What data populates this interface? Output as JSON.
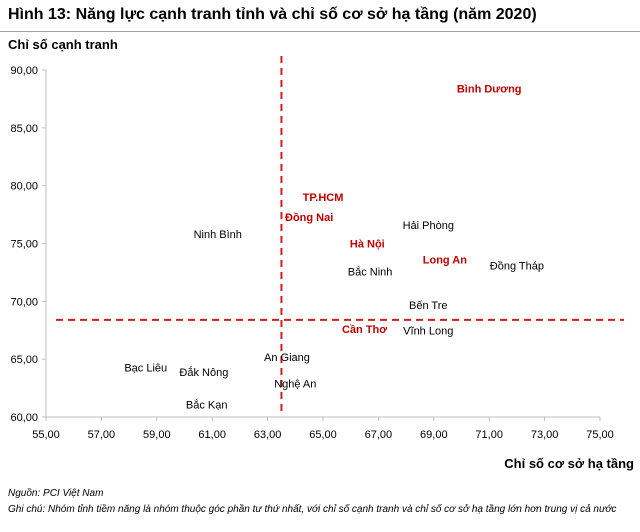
{
  "title": "Hình 13: Năng lực cạnh tranh tỉnh và chỉ số cơ sở hạ tầng (năm 2020)",
  "source": "Nguồn: PCI Việt Nam",
  "note": "Ghi chú: Nhóm tỉnh tiềm năng là nhóm thuộc góc phần tư thứ nhất, với chỉ số cạnh tranh và chỉ số cơ sở hạ tầng lớn hơn trung vị cả nước",
  "colors": {
    "highlight": "#c00000",
    "normal": "#000000",
    "median_line": "#d81b1b",
    "axis": "#bfbfbf"
  },
  "chart_data": {
    "type": "scatter",
    "xlabel": "Chỉ số cơ sở hạ tầng",
    "ylabel": "Chỉ số cạnh tranh",
    "xlim": [
      55,
      75
    ],
    "ylim": [
      60,
      90
    ],
    "xticks": [
      "55,00",
      "57,00",
      "59,00",
      "61,00",
      "63,00",
      "65,00",
      "67,00",
      "69,00",
      "71,00",
      "73,00",
      "75,00"
    ],
    "yticks": [
      "60,00",
      "65,00",
      "70,00",
      "75,00",
      "80,00",
      "85,00",
      "90,00"
    ],
    "grid": false,
    "median_lines": {
      "x": 63.5,
      "y": 68.4
    },
    "points": [
      {
        "label": "Bình Dương",
        "x": 71.0,
        "y": 88.4,
        "highlight": true
      },
      {
        "label": "TP.HCM",
        "x": 65.0,
        "y": 79.0,
        "highlight": true
      },
      {
        "label": "Đồng Nai",
        "x": 64.5,
        "y": 77.3,
        "highlight": true
      },
      {
        "label": "Hà Nội",
        "x": 66.6,
        "y": 75.0,
        "highlight": true
      },
      {
        "label": "Long An",
        "x": 69.4,
        "y": 73.6,
        "highlight": true
      },
      {
        "label": "Cần Thơ",
        "x": 66.5,
        "y": 67.6,
        "highlight": true
      },
      {
        "label": "Ninh Bình",
        "x": 61.2,
        "y": 75.8,
        "highlight": false
      },
      {
        "label": "Hải Phòng",
        "x": 68.8,
        "y": 76.6,
        "highlight": false
      },
      {
        "label": "Bắc Ninh",
        "x": 66.7,
        "y": 72.6,
        "highlight": false
      },
      {
        "label": "Đồng Tháp",
        "x": 72.0,
        "y": 73.1,
        "highlight": false
      },
      {
        "label": "Bến Tre",
        "x": 68.8,
        "y": 69.7,
        "highlight": false
      },
      {
        "label": "Vĩnh Long",
        "x": 68.8,
        "y": 67.5,
        "highlight": false
      },
      {
        "label": "An Giang",
        "x": 63.7,
        "y": 65.2,
        "highlight": false
      },
      {
        "label": "Bạc Liêu",
        "x": 58.6,
        "y": 64.3,
        "highlight": false
      },
      {
        "label": "Đắk Nông",
        "x": 60.7,
        "y": 63.9,
        "highlight": false
      },
      {
        "label": "Nghệ An",
        "x": 64.0,
        "y": 62.9,
        "highlight": false
      },
      {
        "label": "Bắc Kạn",
        "x": 60.8,
        "y": 61.1,
        "highlight": false
      }
    ]
  }
}
